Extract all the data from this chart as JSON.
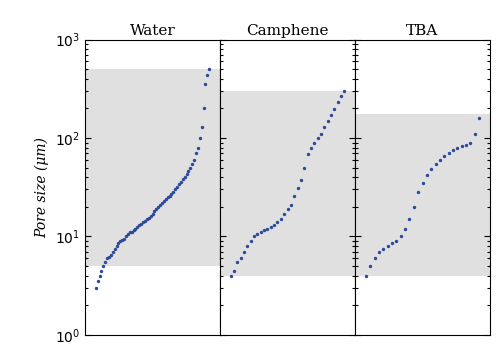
{
  "title_water": "Water",
  "title_camphene": "Camphene",
  "title_tba": "TBA",
  "ylabel": "Pore size (μm)",
  "ylim": [
    1.0,
    1000.0
  ],
  "dot_color": "#2b4a9e",
  "dot_size": 6,
  "shade_color": "#e0e0e0",
  "water_shade": [
    5.0,
    500.0
  ],
  "camphene_shade": [
    4.0,
    300.0
  ],
  "tba_shade": [
    4.0,
    175.0
  ],
  "water_data": [
    3.0,
    3.5,
    4.0,
    4.5,
    5.0,
    5.5,
    6.0,
    6.2,
    6.5,
    7.0,
    7.5,
    8.0,
    8.5,
    9.0,
    9.3,
    9.5,
    10.0,
    10.5,
    11.0,
    11.0,
    11.5,
    12.0,
    12.5,
    13.0,
    13.5,
    14.0,
    14.5,
    15.0,
    15.5,
    16.0,
    17.0,
    18.0,
    19.0,
    20.0,
    21.0,
    22.0,
    23.0,
    24.0,
    25.0,
    26.0,
    27.0,
    28.0,
    30.0,
    32.0,
    34.0,
    36.0,
    38.0,
    40.0,
    43.0,
    46.0,
    50.0,
    55.0,
    60.0,
    70.0,
    80.0,
    100.0,
    130.0,
    200.0,
    350.0,
    440.0,
    500.0
  ],
  "camphene_data": [
    4.0,
    4.5,
    5.5,
    6.0,
    7.0,
    8.0,
    9.0,
    10.0,
    10.5,
    11.0,
    11.5,
    12.0,
    12.5,
    13.0,
    14.0,
    15.0,
    17.0,
    19.0,
    21.0,
    26.0,
    31.0,
    37.0,
    50.0,
    68.0,
    80.0,
    90.0,
    100.0,
    110.0,
    130.0,
    150.0,
    170.0,
    195.0,
    230.0,
    265.0,
    300.0
  ],
  "tba_data": [
    4.0,
    5.0,
    6.0,
    7.0,
    7.5,
    8.0,
    8.5,
    9.0,
    10.0,
    12.0,
    15.0,
    20.0,
    28.0,
    35.0,
    42.0,
    48.0,
    55.0,
    60.0,
    65.0,
    70.0,
    75.0,
    80.0,
    82.0,
    85.0,
    90.0,
    110.0,
    160.0
  ],
  "figsize": [
    5.0,
    3.6
  ],
  "dpi": 100
}
